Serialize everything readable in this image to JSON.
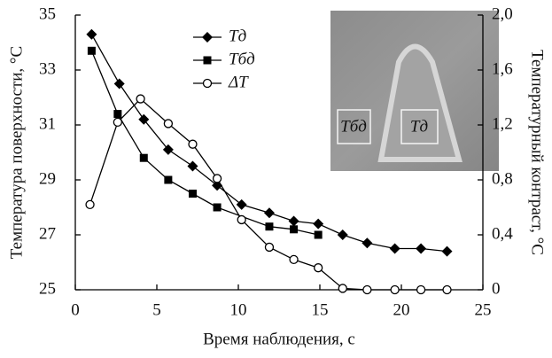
{
  "chart_data": {
    "type": "line",
    "x_label": "Время наблюдения, с",
    "y_label": "Температура поверхности, °С",
    "y2_label": "Температурный контраст, °С",
    "xlim": [
      0,
      25
    ],
    "xticks": [
      0,
      5,
      10,
      15,
      20,
      25
    ],
    "ylim": [
      25,
      35
    ],
    "yticks": [
      25,
      27,
      29,
      31,
      33,
      35
    ],
    "y2lim": [
      0,
      2
    ],
    "y2ticks": [
      0,
      {
        "value": 0.4,
        "label": "0,4"
      },
      {
        "value": 0.8,
        "label": "0,8"
      },
      {
        "value": 1.2,
        "label": "1,2"
      },
      {
        "value": 1.6,
        "label": "1,6"
      },
      {
        "value": 2,
        "label": "2,0"
      }
    ],
    "series": [
      {
        "name": "Tд",
        "color": "#000000",
        "marker": "diamond",
        "x": [
          1.0,
          2.7,
          4.2,
          5.7,
          7.2,
          8.7,
          10.2,
          11.9,
          13.4,
          14.9,
          16.4,
          17.9,
          19.6,
          21.2,
          22.8
        ],
        "values": [
          34.3,
          32.5,
          31.2,
          30.1,
          29.5,
          28.8,
          28.1,
          27.8,
          27.5,
          27.4,
          27.0,
          26.7,
          26.5,
          26.5,
          26.4
        ]
      },
      {
        "name": "Tбд",
        "color": "#000000",
        "marker": "square",
        "x": [
          1.0,
          2.6,
          4.2,
          5.7,
          7.2,
          8.7,
          11.9,
          13.4,
          14.9
        ],
        "values": [
          33.7,
          31.4,
          29.8,
          29.0,
          28.5,
          28.0,
          27.3,
          27.2,
          27.0
        ]
      },
      {
        "name": "ΔT",
        "color": "#000000",
        "marker": "circle",
        "axis": "y2",
        "x": [
          0.9,
          2.6,
          4.0,
          5.7,
          7.2,
          8.7,
          10.2,
          11.9,
          13.4,
          14.9,
          16.4,
          17.9,
          19.6,
          21.2,
          22.8
        ],
        "values": [
          0.62,
          1.22,
          1.39,
          1.21,
          1.06,
          0.81,
          0.51,
          0.31,
          0.22,
          0.16,
          0.01,
          0,
          0,
          0,
          0
        ]
      }
    ],
    "inset_labels": [
      "Tбд",
      "Tд"
    ]
  }
}
